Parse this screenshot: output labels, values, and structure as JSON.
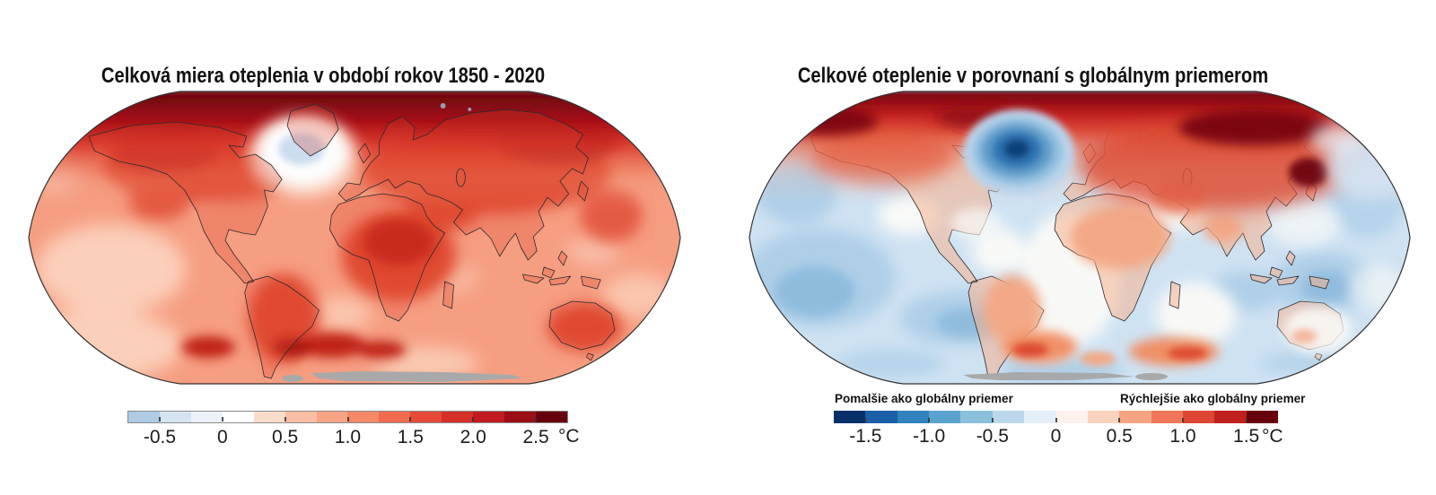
{
  "page": {
    "background": "#ffffff"
  },
  "panels": [
    {
      "title": "Celková miera oteplenia v období rokov 1850 - 2020",
      "colorbar": {
        "min": -0.75,
        "max": 2.75,
        "tick_values": [
          -0.5,
          0,
          0.5,
          1.0,
          1.5,
          2.0,
          2.5
        ],
        "tick_labels": [
          "-0.5",
          "0",
          "0.5",
          "1.0",
          "1.5",
          "2.0",
          "2.5"
        ],
        "unit": "°C",
        "segment_colors": [
          "#AFCBE6",
          "#D6E4F2",
          "#ECF2F9",
          "#FEFEFE",
          "#FADCCC",
          "#F9BEA4",
          "#F7A385",
          "#F58866",
          "#F06B4D",
          "#E54A38",
          "#D6302A",
          "#C01C20",
          "#9C0E16",
          "#67000D"
        ]
      }
    },
    {
      "title": "Celkové oteplenie v porovnaní s globálnym priemerom",
      "annotation_left": "Pomalšie ako globálny priemer",
      "annotation_right": "Rýchlejšie ako globálny priemer",
      "colorbar": {
        "min": -1.75,
        "max": 1.75,
        "tick_values": [
          -1.5,
          -1.0,
          -0.5,
          0,
          0.5,
          1.0,
          1.5
        ],
        "tick_labels": [
          "-1.5",
          "-1.0",
          "-0.5",
          "0",
          "0.5",
          "1.0",
          "1.5"
        ],
        "unit": "°C",
        "segment_colors": [
          "#08306B",
          "#1A5FA8",
          "#3182BD",
          "#5BA3CE",
          "#8BC0DD",
          "#BCD7EB",
          "#E3EEF8",
          "#FDF2EC",
          "#FAD3BE",
          "#F5A483",
          "#EF7758",
          "#DC4632",
          "#C0211F",
          "#67000D"
        ]
      }
    }
  ],
  "chart_data": [
    {
      "type": "heatmap",
      "subtype": "filled-contour world map",
      "projection": "robinson",
      "title": "Celková miera oteplenia v období rokov 1850 - 2020",
      "unit": "°C",
      "scale": {
        "min": -0.75,
        "max": 2.75,
        "contour_interval": 0.25,
        "tick_labels": [
          "-0.5",
          "0",
          "0.5",
          "1.0",
          "1.5",
          "2.0",
          "2.5"
        ]
      },
      "no_data_color": "#A9A9A9",
      "regions": [
        {
          "region": "Arctic Ocean / far northern Siberia and Canada",
          "approx_value_c": 2.6
        },
        {
          "region": "Northern Eurasia (Siberia, eastern Europe)",
          "approx_value_c": 2.1
        },
        {
          "region": "Canada / northern North America",
          "approx_value_c": 1.9
        },
        {
          "region": "North Atlantic south of Greenland (warming hole)",
          "approx_value_c": -0.4
        },
        {
          "region": "Central Africa and Middle East land",
          "approx_value_c": 1.5
        },
        {
          "region": "South America interior",
          "approx_value_c": 1.3
        },
        {
          "region": "Australia",
          "approx_value_c": 1.2
        },
        {
          "region": "Tropical and subtropical oceans",
          "approx_value_c": 0.9
        },
        {
          "region": "South-east Pacific / Southern Ocean pale patches",
          "approx_value_c": 0.6
        },
        {
          "region": "Antarctic coastal strip",
          "approx_value_c": null,
          "note": "no data (gray)"
        }
      ]
    },
    {
      "type": "heatmap",
      "subtype": "filled-contour world map",
      "projection": "robinson",
      "title": "Celkové oteplenie v porovnaní s globálnym priemerom",
      "unit": "°C",
      "scale": {
        "min": -1.75,
        "max": 1.75,
        "contour_interval": 0.25,
        "tick_labels": [
          "-1.5",
          "-1.0",
          "-0.5",
          "0",
          "0.5",
          "1.0",
          "1.5"
        ]
      },
      "legend_annotations": {
        "below_average": "Pomalšie ako globálny priemer",
        "above_average": "Rýchlejšie ako globálny priemer"
      },
      "no_data_color": "#A9A9A9",
      "regions": [
        {
          "region": "Arctic / far northern Siberia",
          "approx_value_c": 1.6
        },
        {
          "region": "Siberia and northern Canada",
          "approx_value_c": 1.0
        },
        {
          "region": "Europe and Scandinavia",
          "approx_value_c": 0.5
        },
        {
          "region": "North Atlantic south of Greenland (cooling hole)",
          "approx_value_c": -1.6
        },
        {
          "region": "Africa / South America / India interiors",
          "approx_value_c": 0.3
        },
        {
          "region": "Most mid- and low-latitude oceans",
          "approx_value_c": -0.3
        },
        {
          "region": "South-east Pacific deeper blue patches",
          "approx_value_c": -0.6
        },
        {
          "region": "Southern Ocean warm spots (~55°S Atlantic/Indian)",
          "approx_value_c": 0.8
        },
        {
          "region": "Australia / USA",
          "approx_value_c": 0.0
        },
        {
          "region": "Antarctic coastal strip",
          "approx_value_c": null,
          "note": "no data (gray)"
        }
      ]
    }
  ]
}
